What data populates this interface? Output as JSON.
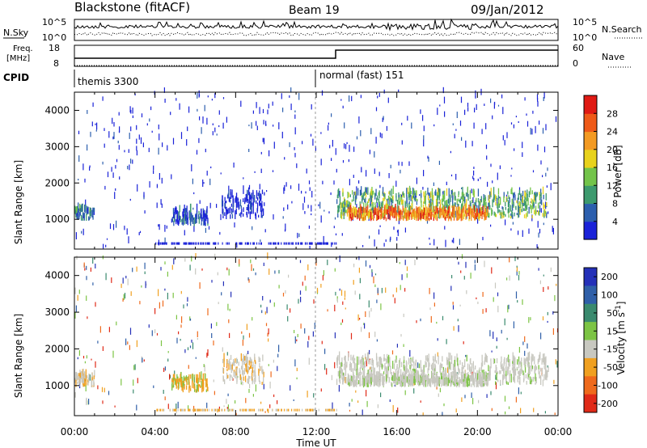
{
  "header": {
    "title": "Blackstone (fitACF)",
    "beam": "Beam 19",
    "date": "09/Jan/2012"
  },
  "panels": {
    "nsky": {
      "label": "N.Sky",
      "ticks": [
        "10^5",
        "10^0"
      ],
      "right_label": "N.Search",
      "right_ticks": [
        "10^5",
        "10^0"
      ]
    },
    "freq": {
      "label_lines": [
        "Freq.",
        "[MHz]"
      ],
      "ticks": [
        "18",
        "8"
      ],
      "right_label": "Nave",
      "right_ticks": [
        "60",
        "0"
      ]
    },
    "cpid": {
      "label": "CPID",
      "segments": [
        "themis 3300",
        "normal (fast) 151"
      ]
    }
  },
  "chart_data": [
    {
      "type": "heatmap",
      "name": "power",
      "xlabel": "",
      "ylabel": "Slant Range [km]",
      "x_ticks": [
        "00:00",
        "04:00",
        "08:00",
        "12:00",
        "16:00",
        "20:00",
        "00:00"
      ],
      "x_range_hours": [
        0,
        24
      ],
      "y_ticks": [
        1000,
        2000,
        3000,
        4000
      ],
      "y_range": [
        180,
        4500
      ],
      "colorbar": {
        "label": "Power [dB]",
        "ticks": [
          4,
          8,
          12,
          16,
          20,
          24,
          28
        ],
        "range": [
          0,
          32
        ],
        "colors": [
          "#1a22d8",
          "#2c5fae",
          "#3d9a6e",
          "#73c44a",
          "#e8d21c",
          "#f39a22",
          "#ef5a18",
          "#e01a14"
        ]
      },
      "scatter_bands": [
        {
          "t": [
            0.0,
            1.0
          ],
          "r": [
            950,
            1250
          ],
          "level": 2
        },
        {
          "t": [
            4.8,
            6.6
          ],
          "r": [
            800,
            1200
          ],
          "level": 1
        },
        {
          "t": [
            7.3,
            9.4
          ],
          "r": [
            1000,
            1700
          ],
          "level": 0
        },
        {
          "t": [
            13.0,
            23.5
          ],
          "r": [
            1000,
            1700
          ],
          "level": 3
        },
        {
          "t": [
            13.5,
            20.5
          ],
          "r": [
            950,
            1200
          ],
          "level": 6
        }
      ]
    },
    {
      "type": "heatmap",
      "name": "velocity",
      "xlabel": "Time UT",
      "ylabel": "Slant Range [km]",
      "x_ticks": [
        "00:00",
        "04:00",
        "08:00",
        "12:00",
        "16:00",
        "20:00",
        "00:00"
      ],
      "x_range_hours": [
        0,
        24
      ],
      "y_ticks": [
        1000,
        2000,
        3000,
        4000
      ],
      "y_range": [
        180,
        4500
      ],
      "colorbar": {
        "label": "Velocity [m s^-1]",
        "ticks": [
          "200",
          "100",
          "50",
          "15",
          "-15",
          "-50",
          "-100",
          "-200"
        ],
        "colors": [
          "#2430b8",
          "#2f5fa8",
          "#3a8a6e",
          "#7cc444",
          "#c8c8c0",
          "#f0a020",
          "#ef6a1c",
          "#e02a18"
        ]
      }
    }
  ]
}
